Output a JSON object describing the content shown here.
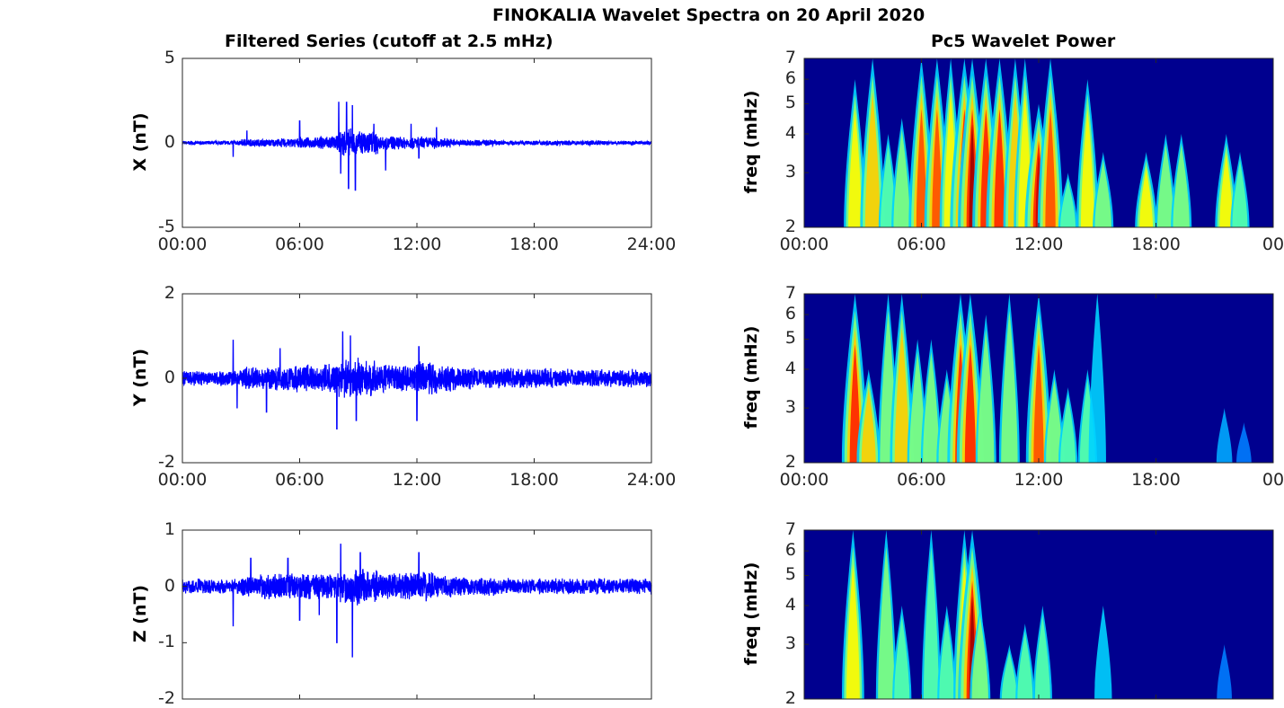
{
  "title": "FINOKALIA Wavelet Spectra on 20 April 2020",
  "chart_data": [
    {
      "type": "line",
      "title": "Filtered Series (cutoff at 2.5 mHz)",
      "ylabel": "X (nT)",
      "ylim": [
        -5,
        5
      ],
      "yticks": [
        "5",
        "0",
        "-5"
      ],
      "xticks": [
        "00:00",
        "06:00",
        "12:00",
        "18:00",
        "24:00"
      ],
      "xlim": [
        0,
        24
      ],
      "color": "#0000ff",
      "envelope": [
        0.12,
        0.12,
        0.15,
        0.25,
        0.25,
        0.3,
        0.35,
        0.45,
        0.9,
        0.8,
        0.45,
        0.4,
        0.4,
        0.3,
        0.2,
        0.2,
        0.15,
        0.15,
        0.15,
        0.15,
        0.15,
        0.15,
        0.12,
        0.12
      ],
      "spikes": [
        [
          2.6,
          -0.8
        ],
        [
          3.3,
          0.7
        ],
        [
          6.0,
          1.3
        ],
        [
          8.0,
          2.4
        ],
        [
          8.1,
          -1.8
        ],
        [
          8.4,
          2.4
        ],
        [
          8.5,
          -2.7
        ],
        [
          8.7,
          2.2
        ],
        [
          8.85,
          -2.8
        ],
        [
          9.8,
          1.1
        ],
        [
          10.4,
          -1.6
        ],
        [
          11.7,
          1.1
        ],
        [
          12.1,
          -0.9
        ],
        [
          13.0,
          0.9
        ]
      ]
    },
    {
      "type": "line",
      "ylabel": "Y (nT)",
      "ylim": [
        -2,
        2
      ],
      "yticks": [
        "2",
        "0",
        "-2"
      ],
      "xticks": [
        "00:00",
        "06:00",
        "12:00",
        "18:00",
        "24:00"
      ],
      "xlim": [
        0,
        24
      ],
      "color": "#0000ff",
      "envelope": [
        0.2,
        0.2,
        0.2,
        0.3,
        0.3,
        0.35,
        0.35,
        0.35,
        0.5,
        0.45,
        0.35,
        0.35,
        0.45,
        0.35,
        0.3,
        0.25,
        0.25,
        0.25,
        0.25,
        0.25,
        0.22,
        0.22,
        0.25,
        0.25
      ],
      "spikes": [
        [
          2.6,
          0.9
        ],
        [
          2.8,
          -0.7
        ],
        [
          4.3,
          -0.8
        ],
        [
          5.0,
          0.7
        ],
        [
          7.9,
          -1.2
        ],
        [
          8.2,
          1.1
        ],
        [
          8.6,
          1.0
        ],
        [
          8.9,
          -1.0
        ],
        [
          12.0,
          -1.0
        ],
        [
          12.1,
          0.75
        ]
      ]
    },
    {
      "type": "line",
      "ylabel": "Z (nT)",
      "ylim": [
        -2,
        1
      ],
      "yticks": [
        "1",
        "0",
        "-1",
        "-2"
      ],
      "xlim": [
        0,
        24
      ],
      "color": "#0000ff",
      "envelope": [
        0.15,
        0.15,
        0.15,
        0.2,
        0.25,
        0.25,
        0.25,
        0.25,
        0.35,
        0.35,
        0.25,
        0.25,
        0.3,
        0.22,
        0.18,
        0.18,
        0.15,
        0.15,
        0.15,
        0.15,
        0.15,
        0.15,
        0.15,
        0.15
      ],
      "spikes": [
        [
          2.6,
          -0.7
        ],
        [
          3.5,
          0.5
        ],
        [
          5.4,
          0.5
        ],
        [
          6.0,
          -0.6
        ],
        [
          7.0,
          -0.5
        ],
        [
          7.9,
          -1.0
        ],
        [
          8.1,
          0.75
        ],
        [
          8.7,
          -1.25
        ],
        [
          9.1,
          0.6
        ],
        [
          12.1,
          0.6
        ]
      ]
    },
    {
      "type": "heatmap",
      "title": "Pc5 Wavelet Power",
      "ylabel": "freq (mHz)",
      "yscale": "log",
      "ylim": [
        2,
        7
      ],
      "yticks": [
        "2",
        "3",
        "4",
        "5",
        "6",
        "7"
      ],
      "xticks": [
        "00:00",
        "06:00",
        "12:00",
        "18:00",
        "00"
      ],
      "xlim": [
        0,
        24
      ],
      "colormap": "jet",
      "events": [
        [
          2.6,
          6,
          0.6
        ],
        [
          3.5,
          7,
          0.75
        ],
        [
          4.3,
          4,
          0.4
        ],
        [
          5.0,
          4.5,
          0.5
        ],
        [
          6.0,
          7,
          0.8
        ],
        [
          6.8,
          7,
          0.8
        ],
        [
          7.5,
          7,
          0.6
        ],
        [
          8.2,
          7,
          1.0
        ],
        [
          8.6,
          7,
          1.0
        ],
        [
          9.3,
          7,
          0.9
        ],
        [
          10.0,
          7,
          0.9
        ],
        [
          10.8,
          7,
          0.7
        ],
        [
          11.3,
          7,
          0.6
        ],
        [
          12.0,
          5,
          0.95
        ],
        [
          12.6,
          7,
          0.8
        ],
        [
          13.5,
          3,
          0.4
        ],
        [
          14.5,
          6,
          0.6
        ],
        [
          15.3,
          3.5,
          0.5
        ],
        [
          17.5,
          3.5,
          0.6
        ],
        [
          18.5,
          4,
          0.5
        ],
        [
          19.3,
          4,
          0.5
        ],
        [
          21.6,
          4,
          0.6
        ],
        [
          22.3,
          3.5,
          0.4
        ]
      ]
    },
    {
      "type": "heatmap",
      "ylabel": "freq (mHz)",
      "yscale": "log",
      "ylim": [
        2,
        7
      ],
      "yticks": [
        "2",
        "3",
        "4",
        "5",
        "6",
        "7"
      ],
      "xticks": [
        "00:00",
        "06:00",
        "12:00",
        "18:00",
        "00"
      ],
      "xlim": [
        0,
        24
      ],
      "colormap": "jet",
      "events": [
        [
          2.6,
          7,
          0.85
        ],
        [
          3.3,
          4,
          0.7
        ],
        [
          4.3,
          7,
          0.5
        ],
        [
          5.0,
          7,
          0.7
        ],
        [
          5.8,
          5,
          0.5
        ],
        [
          6.5,
          5,
          0.5
        ],
        [
          7.3,
          4,
          0.5
        ],
        [
          8.0,
          7,
          0.85
        ],
        [
          8.5,
          7,
          0.9
        ],
        [
          9.3,
          6,
          0.5
        ],
        [
          10.5,
          7,
          0.5
        ],
        [
          12.0,
          7,
          0.8
        ],
        [
          12.8,
          4,
          0.5
        ],
        [
          13.5,
          3.5,
          0.4
        ],
        [
          14.5,
          4,
          0.4
        ],
        [
          15.0,
          7,
          0.3
        ],
        [
          21.5,
          3,
          0.2
        ],
        [
          22.5,
          2.7,
          0.15
        ]
      ]
    },
    {
      "type": "heatmap",
      "ylabel": "freq (mHz)",
      "yscale": "log",
      "ylim": [
        2,
        7
      ],
      "yticks": [
        "2",
        "3",
        "4",
        "5",
        "6",
        "7"
      ],
      "xlim": [
        0,
        24
      ],
      "colormap": "jet",
      "events": [
        [
          2.5,
          7,
          0.6
        ],
        [
          4.2,
          7,
          0.5
        ],
        [
          5.0,
          4,
          0.4
        ],
        [
          6.5,
          7,
          0.4
        ],
        [
          7.3,
          4,
          0.4
        ],
        [
          8.2,
          7,
          0.6
        ],
        [
          8.6,
          7,
          1.0
        ],
        [
          9.0,
          4,
          0.5
        ],
        [
          10.5,
          3,
          0.4
        ],
        [
          11.3,
          3.5,
          0.4
        ],
        [
          12.2,
          4,
          0.4
        ],
        [
          15.3,
          4,
          0.3
        ],
        [
          21.5,
          3,
          0.15
        ]
      ]
    }
  ]
}
